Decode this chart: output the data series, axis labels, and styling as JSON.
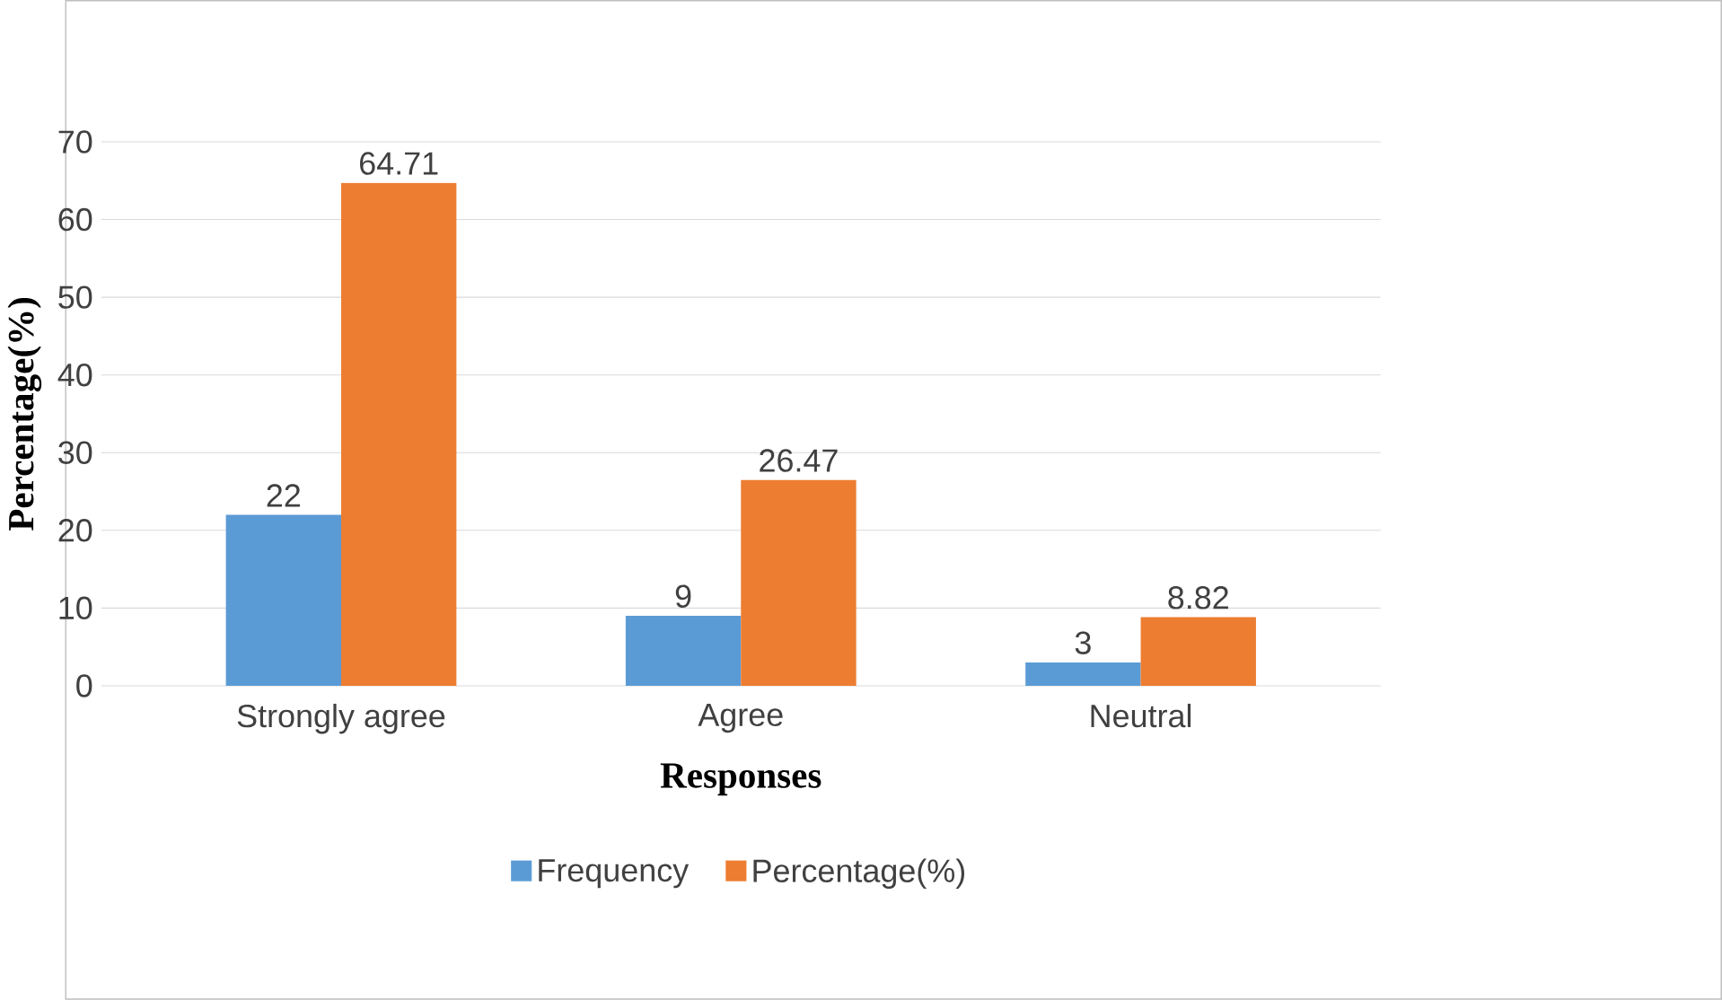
{
  "chart_data": {
    "type": "bar",
    "xlabel": "Responses",
    "ylabel": "Percentage(%)",
    "categories": [
      "Strongly agree",
      "Agree",
      "Neutral"
    ],
    "series": [
      {
        "name": "Frequency",
        "color": "#5b9bd5",
        "values": [
          22,
          9,
          3
        ]
      },
      {
        "name": "Percentage(%)",
        "color": "#ed7d31",
        "values": [
          64.71,
          26.47,
          8.82
        ]
      }
    ],
    "ylim": [
      0,
      70
    ],
    "yticks": [
      0,
      10,
      20,
      30,
      40,
      50,
      60,
      70
    ],
    "grid": "y",
    "legend": "bottom",
    "data_labels": true
  }
}
